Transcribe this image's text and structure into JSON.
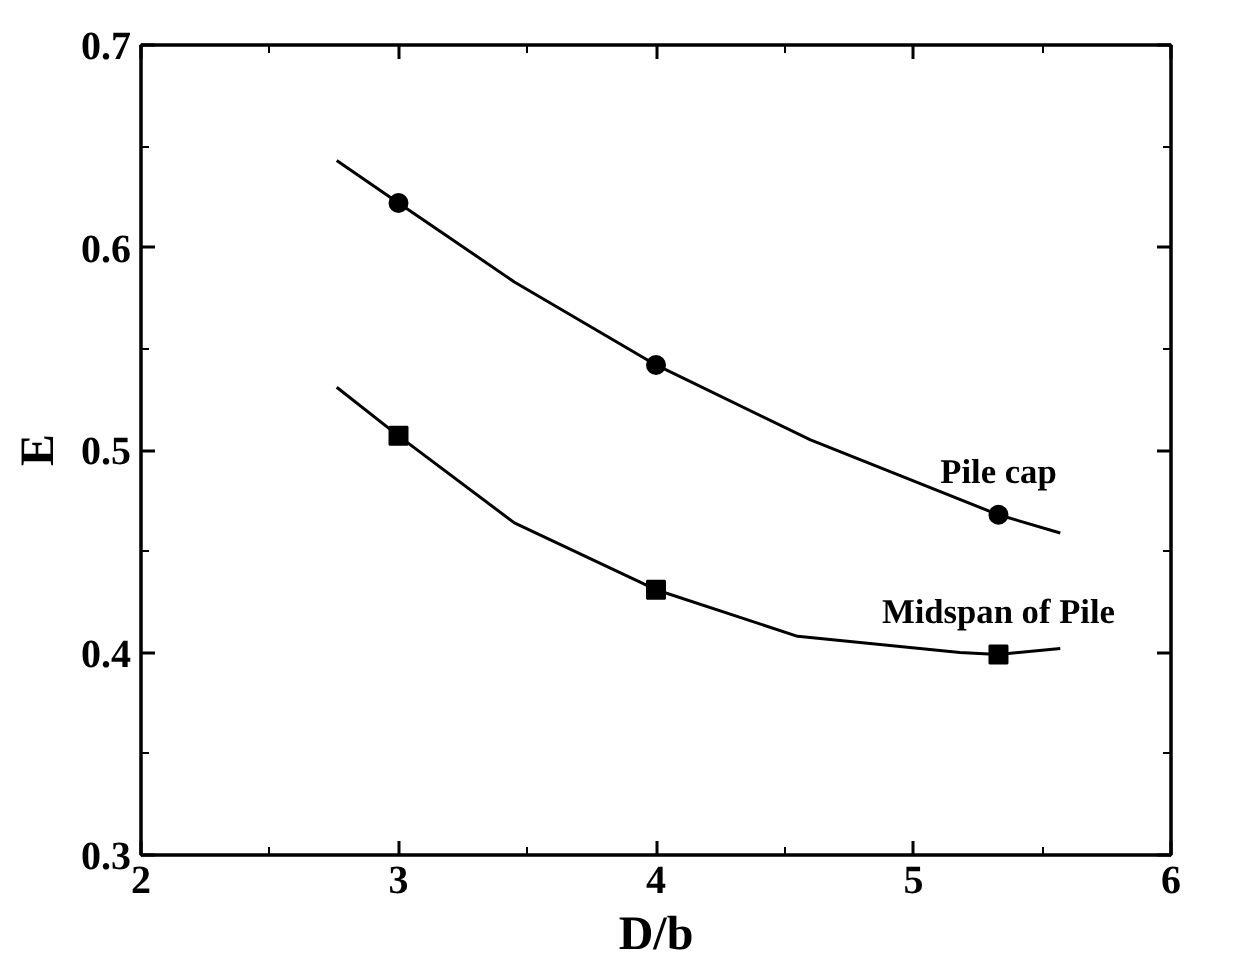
{
  "chart_data": {
    "type": "scatter",
    "xlabel": "D/b",
    "ylabel": "E",
    "xlim": [
      2,
      6
    ],
    "ylim": [
      0.3,
      0.7
    ],
    "xticks": [
      2,
      3,
      4,
      5,
      6
    ],
    "yticks": [
      0.3,
      0.4,
      0.5,
      0.6,
      0.7
    ],
    "grid": false,
    "series": [
      {
        "name": "Pile cap",
        "marker": "circle",
        "color": "#000000",
        "x": [
          3,
          4,
          5.33
        ],
        "values": [
          0.622,
          0.542,
          0.468
        ]
      },
      {
        "name": "Midspan of Pile",
        "marker": "square",
        "color": "#000000",
        "x": [
          3,
          4,
          5.33
        ],
        "values": [
          0.507,
          0.431,
          0.399
        ]
      },
      {
        "type": "line",
        "color": "#000000",
        "x": [
          2.76,
          3.0,
          3.45,
          4.0,
          4.6,
          5.33,
          5.57
        ],
        "values": [
          0.643,
          0.622,
          0.583,
          0.542,
          0.505,
          0.468,
          0.459
        ]
      },
      {
        "type": "line",
        "color": "#000000",
        "x": [
          2.76,
          3.0,
          3.45,
          4.0,
          4.55,
          5.18,
          5.33,
          5.57
        ],
        "values": [
          0.531,
          0.507,
          0.464,
          0.431,
          0.408,
          0.4,
          0.399,
          0.402
        ]
      }
    ]
  }
}
